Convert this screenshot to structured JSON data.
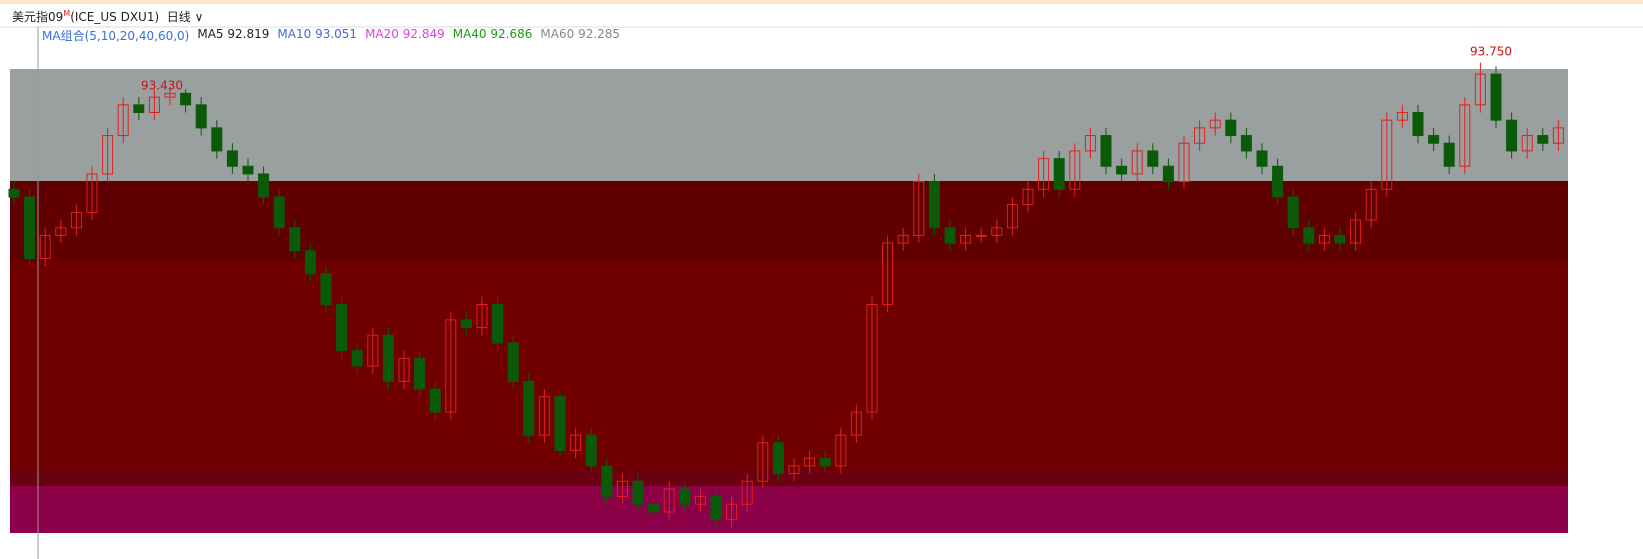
{
  "header": {
    "title": "美元指09",
    "badge": "M",
    "code": "(ICE_US DXU1)",
    "period": "日线",
    "ma_group": "MA组合(5,10,20,40,60,0)",
    "ma": [
      {
        "name": "MA5",
        "value": 92.819,
        "color": "#222222"
      },
      {
        "name": "MA10",
        "value": 93.051,
        "color": "#3a6fd8"
      },
      {
        "name": "MA20",
        "value": 92.849,
        "color": "#e040e0"
      },
      {
        "name": "MA40",
        "value": 92.686,
        "color": "#1a9a1a"
      },
      {
        "name": "MA60",
        "value": 92.285,
        "color": "#888888"
      }
    ]
  },
  "chart_data": {
    "type": "candlestick",
    "ylim": [
      87.6,
      94.2
    ],
    "up_color": "#e02020",
    "down_color": "#0a5a0a",
    "annotations": [
      "93.750",
      "93.430"
    ],
    "open": [
      92.1,
      92.0,
      91.2,
      91.5,
      91.6,
      91.8,
      92.3,
      92.8,
      93.2,
      93.1,
      93.3,
      93.35,
      93.2,
      92.9,
      92.6,
      92.4,
      92.3,
      92.0,
      91.6,
      91.3,
      91.0,
      90.6,
      90.0,
      89.8,
      90.2,
      89.6,
      89.9,
      89.5,
      89.2,
      90.4,
      90.3,
      90.6,
      90.1,
      89.6,
      88.9,
      89.4,
      88.7,
      88.9,
      88.5,
      88.1,
      88.3,
      88.0,
      87.9,
      88.2,
      88.0,
      88.1,
      87.8,
      88.0,
      88.3,
      88.8,
      88.4,
      88.5,
      88.6,
      88.5,
      88.9,
      89.2,
      90.6,
      91.4,
      91.5,
      92.2,
      91.6,
      91.4,
      91.5,
      91.5,
      91.6,
      91.9,
      92.1,
      92.5,
      92.1,
      92.6,
      92.8,
      92.4,
      92.3,
      92.6,
      92.4,
      92.2,
      92.7,
      92.9,
      93.0,
      92.8,
      92.6,
      92.4,
      92.0,
      91.6,
      91.4,
      91.5,
      91.4,
      91.7,
      92.1,
      93.0,
      93.1,
      92.8,
      92.7,
      92.4,
      93.2,
      93.6,
      93.0,
      92.6,
      92.8,
      92.7
    ],
    "high": [
      92.2,
      92.1,
      91.6,
      91.7,
      91.9,
      92.4,
      92.9,
      93.3,
      93.3,
      93.4,
      93.43,
      93.4,
      93.3,
      93.0,
      92.7,
      92.5,
      92.4,
      92.1,
      91.7,
      91.4,
      91.1,
      90.7,
      90.1,
      90.3,
      90.3,
      90.0,
      90.0,
      89.6,
      90.5,
      90.5,
      90.7,
      90.7,
      90.2,
      89.7,
      89.5,
      89.5,
      89.0,
      89.0,
      88.6,
      88.4,
      88.4,
      88.1,
      88.3,
      88.3,
      88.2,
      88.2,
      88.1,
      88.4,
      88.9,
      88.9,
      88.6,
      88.7,
      88.7,
      89.0,
      89.3,
      90.7,
      91.5,
      91.6,
      92.3,
      92.3,
      91.7,
      91.6,
      91.6,
      91.7,
      92.0,
      92.2,
      92.6,
      92.6,
      92.7,
      92.9,
      92.9,
      92.5,
      92.7,
      92.7,
      92.5,
      92.8,
      93.0,
      93.1,
      93.1,
      92.9,
      92.7,
      92.5,
      92.1,
      91.7,
      91.6,
      91.6,
      91.8,
      92.2,
      93.1,
      93.2,
      93.2,
      92.9,
      92.8,
      93.3,
      93.75,
      93.7,
      93.1,
      92.9,
      92.9,
      93.0
    ],
    "low": [
      91.9,
      91.1,
      91.1,
      91.4,
      91.5,
      91.7,
      92.2,
      92.7,
      93.0,
      93.0,
      93.2,
      93.1,
      92.8,
      92.5,
      92.3,
      92.2,
      91.9,
      91.5,
      91.2,
      90.9,
      90.5,
      89.9,
      89.7,
      89.7,
      89.5,
      89.5,
      89.4,
      89.1,
      89.1,
      90.2,
      90.2,
      90.0,
      89.5,
      88.8,
      88.8,
      88.6,
      88.6,
      88.4,
      88.0,
      88.0,
      87.9,
      87.8,
      87.8,
      87.9,
      87.9,
      87.7,
      87.7,
      87.9,
      88.2,
      88.3,
      88.3,
      88.4,
      88.4,
      88.4,
      88.8,
      89.1,
      90.5,
      91.3,
      91.4,
      91.5,
      91.3,
      91.3,
      91.4,
      91.4,
      91.5,
      91.8,
      92.0,
      92.0,
      92.0,
      92.5,
      92.3,
      92.2,
      92.2,
      92.3,
      92.1,
      92.1,
      92.6,
      92.8,
      92.7,
      92.5,
      92.3,
      91.9,
      91.5,
      91.3,
      91.3,
      91.3,
      91.3,
      91.6,
      92.0,
      92.9,
      92.7,
      92.6,
      92.3,
      92.3,
      93.1,
      92.9,
      92.5,
      92.5,
      92.6,
      92.6
    ],
    "close": [
      92.0,
      91.2,
      91.5,
      91.6,
      91.8,
      92.3,
      92.8,
      93.2,
      93.1,
      93.3,
      93.35,
      93.2,
      92.9,
      92.6,
      92.4,
      92.3,
      92.0,
      91.6,
      91.3,
      91.0,
      90.6,
      90.0,
      89.8,
      90.2,
      89.6,
      89.9,
      89.5,
      89.2,
      90.4,
      90.3,
      90.6,
      90.1,
      89.6,
      88.9,
      89.4,
      88.7,
      88.9,
      88.5,
      88.1,
      88.3,
      88.0,
      87.9,
      88.2,
      88.0,
      88.1,
      87.8,
      88.0,
      88.3,
      88.8,
      88.4,
      88.5,
      88.6,
      88.5,
      88.9,
      89.2,
      90.6,
      91.4,
      91.5,
      92.2,
      91.6,
      91.4,
      91.5,
      91.5,
      91.6,
      91.9,
      92.1,
      92.5,
      92.1,
      92.6,
      92.8,
      92.4,
      92.3,
      92.6,
      92.4,
      92.2,
      92.7,
      92.9,
      93.0,
      92.8,
      92.6,
      92.4,
      92.0,
      91.6,
      91.4,
      91.5,
      91.4,
      91.7,
      92.1,
      93.0,
      93.1,
      92.8,
      92.7,
      92.4,
      93.2,
      93.6,
      93.0,
      92.6,
      92.8,
      92.7,
      92.9
    ]
  }
}
